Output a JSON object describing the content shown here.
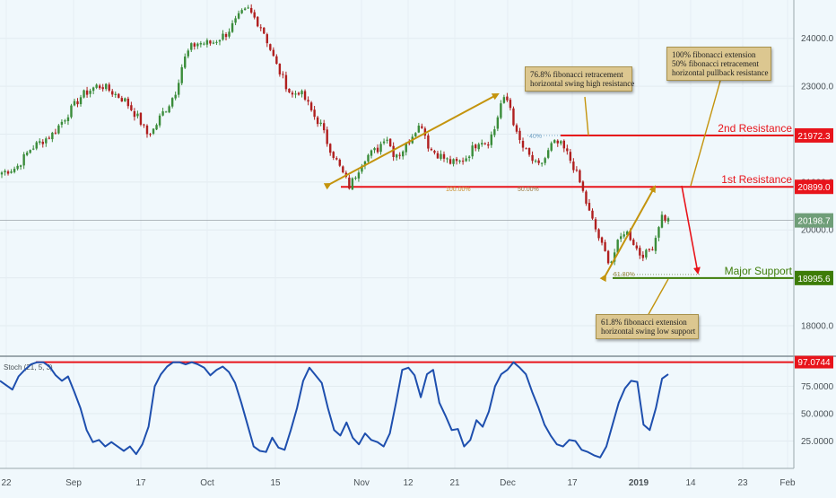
{
  "chart_data": [
    {
      "type": "candlestick",
      "ylim": [
        17400,
        24800
      ],
      "y_ticks": [
        "24000.0",
        "23000.0",
        "22000.0",
        "21000.0",
        "20000.0",
        "19000.0",
        "18000.0"
      ],
      "y_tick_values": [
        24000,
        23000,
        22000,
        21000,
        20000,
        19000,
        18000
      ],
      "x_ticks": [
        "22",
        "Sep",
        "17",
        "Oct",
        "15",
        "Nov",
        "12",
        "21",
        "Dec",
        "17",
        "2019",
        "14",
        "23",
        "Feb"
      ],
      "close_series": [
        21200,
        21250,
        21300,
        21500,
        21700,
        21800,
        21900,
        22000,
        22200,
        22400,
        22600,
        22800,
        22900,
        23000,
        23000,
        22900,
        22800,
        22700,
        22500,
        22300,
        22000,
        22100,
        22400,
        22600,
        22900,
        23500,
        23800,
        23900,
        23900,
        23900,
        24000,
        24100,
        24300,
        24500,
        24600,
        24400,
        24200,
        23800,
        23400,
        23100,
        22800,
        22900,
        22700,
        22400,
        22200,
        21800,
        21500,
        21200,
        20900,
        21200,
        21500,
        21600,
        21700,
        22000,
        21600,
        21600,
        21800,
        22100,
        22200,
        21700,
        21600,
        21500,
        21400,
        21400,
        21500,
        21700,
        21900,
        21800,
        22100,
        22700,
        22700,
        22000,
        21700,
        21500,
        21300,
        21500,
        21800,
        21800,
        21600,
        21300,
        20900,
        20400,
        20000,
        19600,
        19300,
        19700,
        20000,
        19800,
        19500,
        19500,
        19700,
        20300,
        20200
      ],
      "current_price": "20198.7",
      "levels": [
        {
          "name": "2nd Resistance",
          "value": 21972.3,
          "label": "21972.3",
          "color": "#e8141b"
        },
        {
          "name": "1st Resistance",
          "value": 20899.0,
          "label": "20899.0",
          "color": "#e8141b"
        },
        {
          "name": "Major Support",
          "value": 18995.6,
          "label": "18995.6",
          "color": "#3d7c07"
        }
      ],
      "fib_labels": [
        "100.00%",
        "50.00%",
        "61.80%",
        "40%"
      ],
      "annotations": [
        {
          "lines": [
            "76.8% fibonacci retracement",
            "horizontal swing high resistance"
          ]
        },
        {
          "lines": [
            "100% fibonacci extension",
            "50% fibonacci retracement",
            "horizontal pullback resistance"
          ]
        },
        {
          "lines": [
            "61.8% fibonacci extension",
            "horizontal swing low support"
          ]
        }
      ]
    },
    {
      "type": "line",
      "title": "Stoch (21, 5, 3)",
      "ylim": [
        0,
        100
      ],
      "y_ticks": [
        "75.0000",
        "50.0000",
        "25.0000"
      ],
      "y_tick_values": [
        75,
        50,
        25
      ],
      "level": {
        "value": 97.0744,
        "label": "97.0744"
      },
      "values": [
        80,
        76,
        72,
        84,
        90,
        95,
        97,
        97,
        93,
        85,
        80,
        84,
        70,
        55,
        35,
        24,
        26,
        20,
        24,
        20,
        16,
        20,
        13,
        22,
        38,
        75,
        86,
        93,
        97,
        97,
        95,
        97,
        95,
        92,
        85,
        90,
        93,
        88,
        78,
        60,
        40,
        20,
        16,
        15,
        28,
        19,
        17,
        35,
        55,
        80,
        92,
        85,
        78,
        55,
        35,
        30,
        42,
        28,
        22,
        32,
        26,
        24,
        20,
        32,
        60,
        90,
        92,
        85,
        65,
        86,
        90,
        60,
        48,
        35,
        36,
        20,
        26,
        44,
        38,
        52,
        75,
        86,
        90,
        97,
        92,
        86,
        70,
        56,
        40,
        30,
        22,
        20,
        26,
        25,
        17,
        15,
        12,
        10,
        20,
        40,
        60,
        73,
        80,
        79,
        40,
        35,
        55,
        82,
        86
      ]
    }
  ]
}
